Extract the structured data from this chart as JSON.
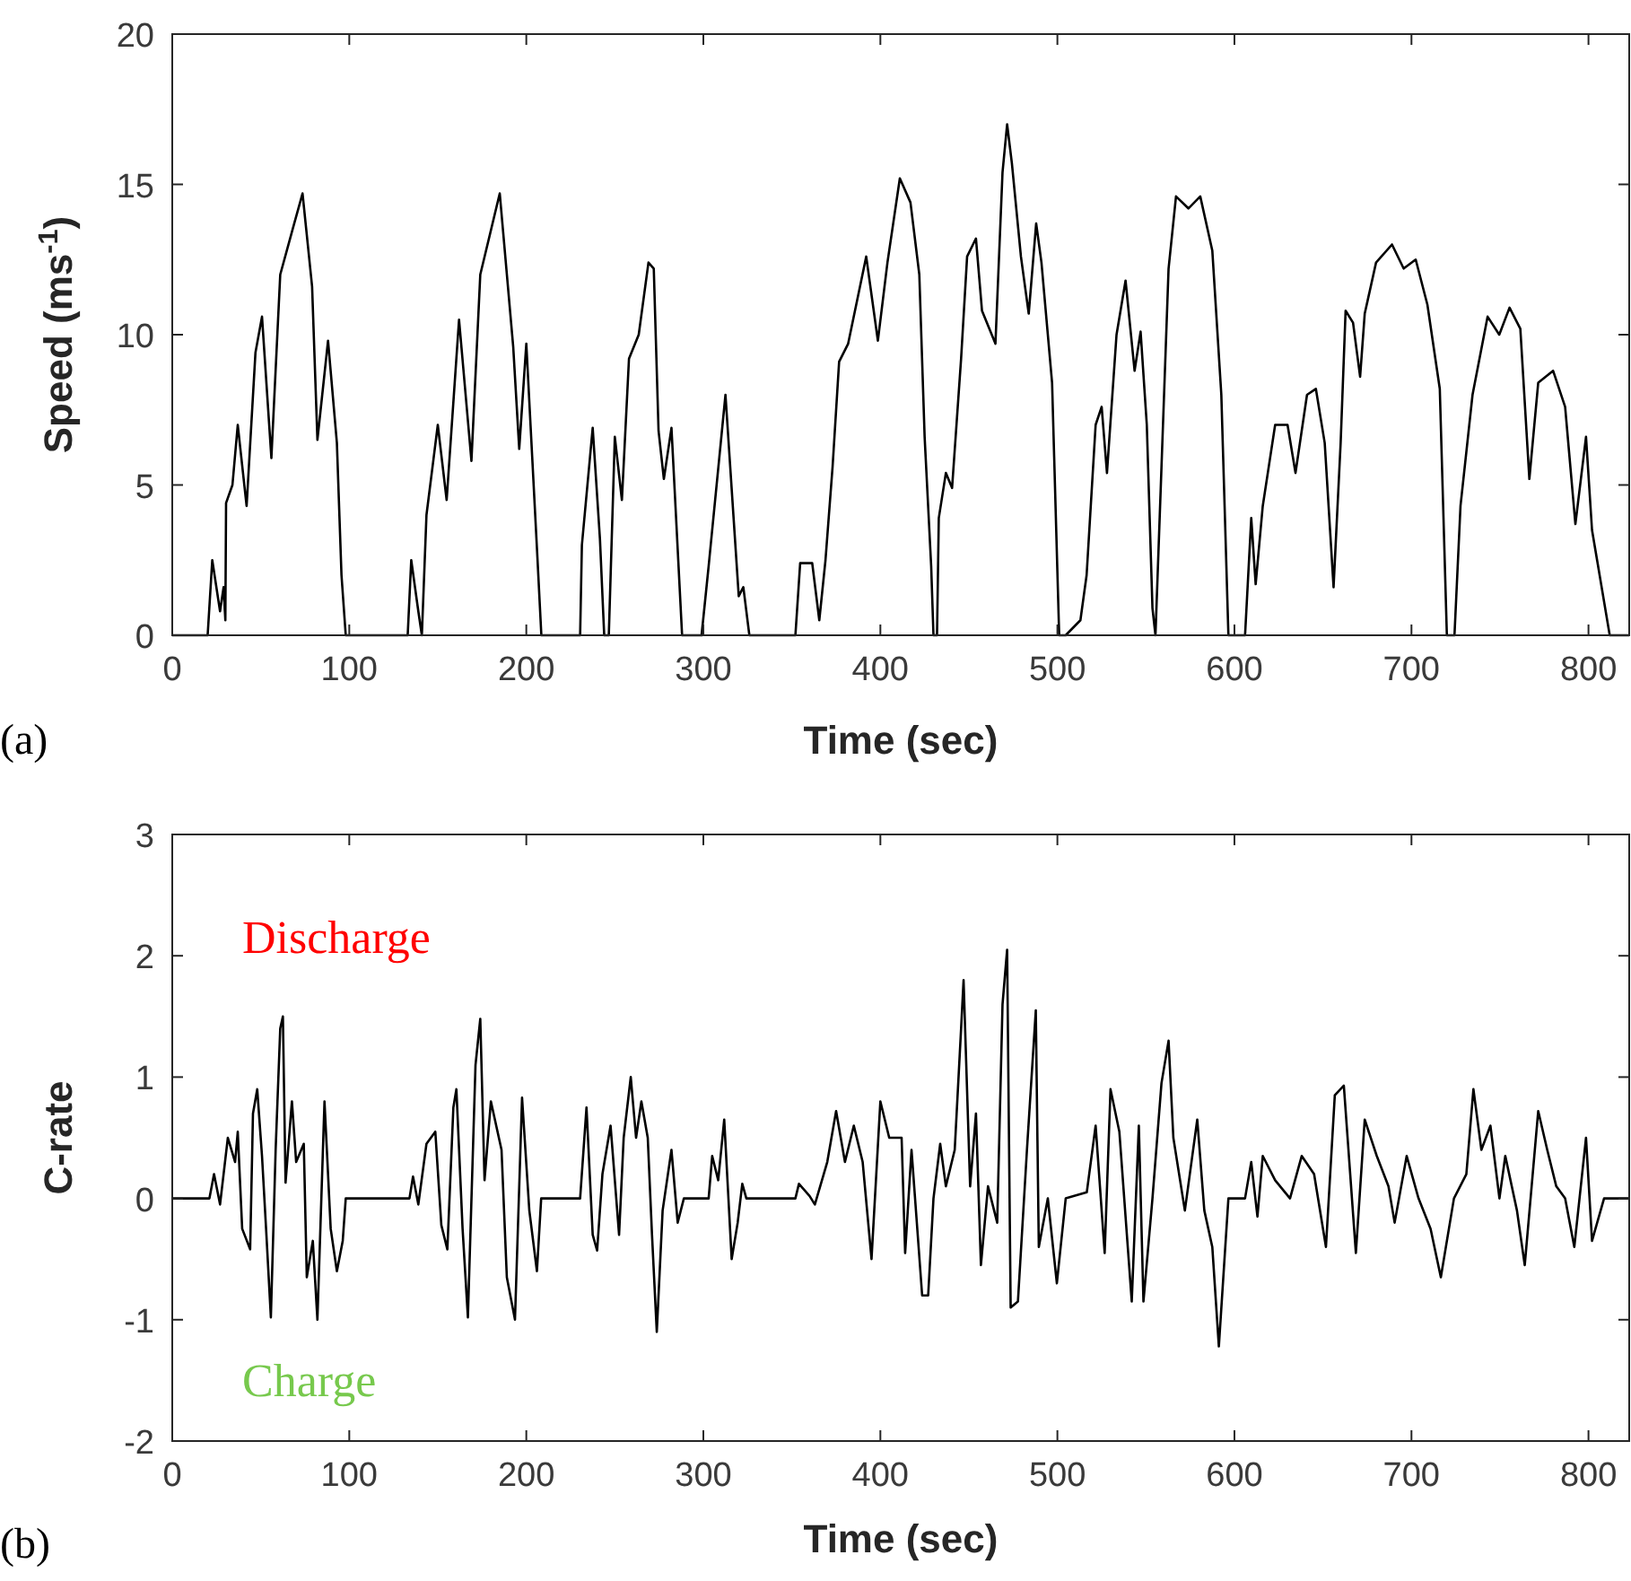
{
  "chart_data": [
    {
      "type": "line",
      "xlabel": "Time (sec)",
      "ylabel": "Speed (ms$^{-1}$)",
      "xlim": [
        0,
        823
      ],
      "ylim": [
        0,
        20
      ],
      "xticks": [
        0,
        100,
        200,
        300,
        400,
        500,
        600,
        700,
        800
      ],
      "yticks": [
        0,
        5,
        10,
        15,
        20
      ],
      "grid": false,
      "annotations": [
        "(a)"
      ],
      "series": [
        {
          "color": "#000000",
          "x": [
            0,
            20,
            22.6,
            27,
            29,
            30,
            30.4,
            34,
            37,
            42,
            47,
            50.7,
            56,
            61,
            67.5,
            73.6,
            79,
            82,
            88,
            93,
            95.6,
            98,
            133,
            135,
            139,
            141,
            143.6,
            150,
            155,
            162,
            169,
            174,
            185,
            192.6,
            196,
            200,
            206,
            208.5,
            230.4,
            231.4,
            237.5,
            241.6,
            244,
            246.6,
            250,
            254,
            258,
            263.5,
            269,
            272,
            274.7,
            277.7,
            282,
            288,
            299,
            303,
            312.5,
            320,
            322.6,
            326,
            352,
            354.7,
            361.5,
            365.5,
            369,
            373,
            376.7,
            381.8,
            392,
            398.6,
            404,
            411,
            417,
            422,
            425,
            428.7,
            430,
            432,
            433,
            437,
            440.5,
            445.6,
            449,
            454,
            457.4,
            465,
            469,
            471.6,
            474.3,
            479.4,
            483.8,
            488,
            491,
            497,
            501,
            504.7,
            513,
            516.5,
            521.6,
            525,
            528,
            533.4,
            538.5,
            543.6,
            547,
            550.5,
            553.7,
            555.4,
            558.8,
            562.8,
            567,
            574,
            580.7,
            587.5,
            592.6,
            596.6,
            606,
            609.5,
            612,
            616,
            623,
            630,
            634.5,
            641,
            646,
            651,
            656,
            660,
            662.8,
            667,
            671,
            673.6,
            680,
            689,
            695.6,
            702.4,
            709,
            716,
            720,
            724.3,
            727.7,
            734.5,
            743,
            749.6,
            755.4,
            761.5,
            766.6,
            771.6,
            780,
            786.8,
            792.6,
            798.6,
            802,
            812,
            823
          ],
          "values": [
            0,
            0,
            2.5,
            0.8,
            1.6,
            0.5,
            4.4,
            5,
            7,
            4.3,
            9.4,
            10.6,
            5.9,
            12,
            13.4,
            14.7,
            11.6,
            6.5,
            9.8,
            6.4,
            2,
            0,
            0,
            2.5,
            0.8,
            0,
            4,
            7,
            4.5,
            10.5,
            5.8,
            12,
            14.7,
            9.6,
            6.2,
            9.7,
            2.9,
            0,
            0,
            3,
            6.9,
            3.2,
            0,
            0,
            6.6,
            4.5,
            9.2,
            10,
            12.4,
            12.2,
            6.8,
            5.2,
            6.9,
            0,
            0,
            2.3,
            8,
            1.3,
            1.6,
            0,
            0,
            2.4,
            2.4,
            0.5,
            2.5,
            5.6,
            9.1,
            9.7,
            12.6,
            9.8,
            12.4,
            15.2,
            14.4,
            12,
            6.6,
            2.3,
            0,
            0,
            3.9,
            5.4,
            4.9,
            9.2,
            12.6,
            13.2,
            10.8,
            9.7,
            15.4,
            17,
            15.7,
            12.6,
            10.7,
            13.7,
            12.4,
            8.4,
            0,
            0,
            0.5,
            2,
            7,
            7.6,
            5.4,
            10,
            11.8,
            8.8,
            10.1,
            7,
            0.9,
            0,
            5.6,
            12.2,
            14.6,
            14.2,
            14.6,
            12.8,
            8,
            0,
            0,
            3.9,
            1.7,
            4.3,
            7,
            7,
            5.4,
            8,
            8.2,
            6.4,
            1.6,
            6.4,
            10.8,
            10.4,
            8.6,
            10.7,
            12.4,
            13,
            12.2,
            12.5,
            11,
            8.2,
            0,
            0,
            4.3,
            8,
            10.6,
            10,
            10.9,
            10.2,
            5.2,
            8.4,
            8.8,
            7.6,
            3.7,
            6.6,
            3.5,
            0,
            0
          ]
        }
      ]
    },
    {
      "type": "line",
      "xlabel": "Time (sec)",
      "ylabel": "C-rate",
      "xlim": [
        0,
        823
      ],
      "ylim": [
        -2,
        3
      ],
      "xticks": [
        0,
        100,
        200,
        300,
        400,
        500,
        600,
        700,
        800
      ],
      "yticks": [
        -2,
        -1,
        0,
        1,
        2,
        3
      ],
      "grid": false,
      "annotations": [
        "Discharge",
        "Charge",
        "(b)"
      ],
      "series": [
        {
          "color": "#000000",
          "x": [
            0,
            21,
            23.6,
            27,
            31.4,
            35.5,
            37,
            39.5,
            44,
            45.6,
            48,
            50.7,
            53,
            55.7,
            58.4,
            61,
            62.5,
            64,
            67.6,
            70,
            74.3,
            76,
            79.4,
            82,
            86,
            89.5,
            93,
            96.3,
            98,
            134,
            136,
            139,
            143.6,
            148.6,
            152,
            155.4,
            158.8,
            160.5,
            164,
            167,
            171.3,
            174,
            176.4,
            180,
            186,
            189,
            193.6,
            197.6,
            201.7,
            206,
            208.4,
            230.4,
            234,
            237.5,
            240,
            243,
            247.6,
            252.4,
            255,
            259,
            262,
            265,
            268.6,
            271,
            273.7,
            277,
            282,
            285.5,
            289,
            303,
            305,
            308.4,
            311.8,
            316,
            319.4,
            322,
            324.3,
            352,
            354,
            360,
            363,
            370,
            375,
            380,
            385,
            390,
            395,
            400,
            405,
            412,
            414,
            417.6,
            423.6,
            427,
            430,
            433.8,
            437,
            442,
            445.6,
            447,
            450.7,
            454,
            456.8,
            460.8,
            466,
            469,
            471.6,
            473.6,
            477.7,
            482.8,
            487.8,
            489.5,
            494.6,
            499.7,
            504.7,
            516.6,
            521.6,
            526.7,
            530,
            535,
            542,
            546,
            548.6,
            553.7,
            558.8,
            562.8,
            565.5,
            572,
            579,
            583,
            587.5,
            591.2,
            596.6,
            606,
            609.5,
            613,
            616,
            623,
            631.4,
            638,
            645,
            651.7,
            656.7,
            661.8,
            668.6,
            673.6,
            680.4,
            687,
            690.5,
            697.3,
            704,
            710.8,
            716.6,
            724,
            731,
            735,
            739.5,
            744.6,
            749.7,
            753,
            759.6,
            764,
            771.6,
            776.7,
            781.8,
            786.8,
            792,
            798.6,
            802,
            808.8,
            823
          ],
          "values": [
            0,
            0,
            0.2,
            -0.05,
            0.5,
            0.3,
            0.55,
            -0.25,
            -0.42,
            0.7,
            0.9,
            0.35,
            -0.25,
            -0.98,
            0.4,
            1.4,
            1.5,
            0.13,
            0.8,
            0.3,
            0.45,
            -0.65,
            -0.35,
            -1,
            0.8,
            -0.25,
            -0.6,
            -0.35,
            0,
            0,
            0.18,
            -0.05,
            0.45,
            0.55,
            -0.22,
            -0.42,
            0.75,
            0.9,
            -0.25,
            -0.98,
            1.1,
            1.48,
            0.15,
            0.8,
            0.4,
            -0.65,
            -1,
            0.83,
            -0.1,
            -0.6,
            0,
            0,
            0.75,
            -0.3,
            -0.43,
            0.2,
            0.6,
            -0.3,
            0.5,
            1,
            0.5,
            0.8,
            0.5,
            -0.3,
            -1.1,
            -0.1,
            0.4,
            -0.2,
            0,
            0,
            0.35,
            0.15,
            0.65,
            -0.5,
            -0.2,
            0.12,
            0,
            0,
            0.12,
            0.02,
            -0.05,
            0.3,
            0.72,
            0.3,
            0.6,
            0.3,
            -0.5,
            0.8,
            0.5,
            0.5,
            -0.45,
            0.4,
            -0.8,
            -0.8,
            0,
            0.45,
            0.1,
            0.4,
            1.4,
            1.8,
            0.1,
            0.7,
            -0.55,
            0.1,
            -0.2,
            1.6,
            2.05,
            -0.9,
            -0.85,
            0.4,
            1.55,
            -0.4,
            0,
            -0.7,
            0,
            0.05,
            0.6,
            -0.45,
            0.9,
            0.55,
            -0.85,
            0.6,
            -0.85,
            0,
            0.95,
            1.3,
            0.5,
            -0.1,
            0.65,
            -0.1,
            -0.4,
            -1.22,
            0,
            0,
            0.3,
            -0.15,
            0.35,
            0.15,
            0,
            0.35,
            0.2,
            -0.4,
            0.85,
            0.93,
            -0.45,
            0.65,
            0.35,
            0.1,
            -0.2,
            0.35,
            0,
            -0.25,
            -0.65,
            0,
            0.2,
            0.9,
            0.4,
            0.6,
            0,
            0.35,
            -0.1,
            -0.55,
            0.72,
            0.4,
            0.1,
            0,
            -0.4,
            0.5,
            -0.35,
            0,
            0
          ]
        }
      ]
    }
  ]
}
